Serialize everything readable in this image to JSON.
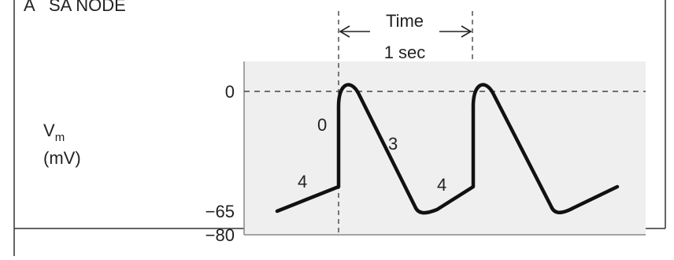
{
  "figure": {
    "panel_label": "A",
    "title": "SA NODE",
    "time_label": "Time",
    "time_value": "1 sec",
    "y_label_main": "V",
    "y_label_sub": "m",
    "y_label_unit": "(mV)",
    "y_ticks": [
      "0",
      "−65",
      "−80"
    ],
    "phase_labels": [
      "4",
      "0",
      "3",
      "4"
    ]
  },
  "colors": {
    "plot_background": "#efefef",
    "trace": "#111111",
    "dashed": "#444444",
    "frame": "#333333"
  }
}
